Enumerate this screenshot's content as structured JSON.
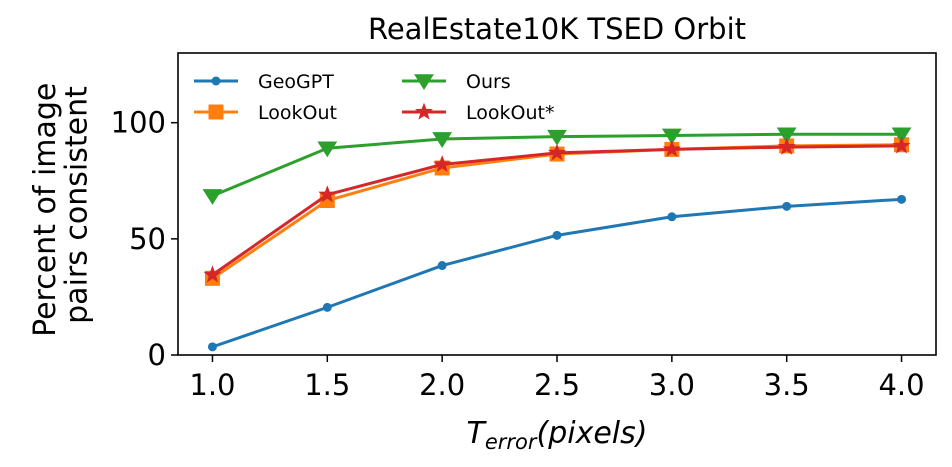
{
  "chart_data": {
    "type": "line",
    "title": "RealEstate10K TSED Orbit",
    "xlabel_main": "T",
    "xlabel_sub": "error",
    "xlabel_rest": "(pixels)",
    "ylabel_line1": "Percent of image",
    "ylabel_line2": "pairs consistent",
    "x": [
      1.0,
      1.5,
      2.0,
      2.5,
      3.0,
      3.5,
      4.0
    ],
    "x_tick_labels": [
      "1.0",
      "1.5",
      "2.0",
      "2.5",
      "3.0",
      "3.5",
      "4.0"
    ],
    "y_ticks": [
      0,
      50,
      100
    ],
    "y_tick_labels": [
      "0",
      "50",
      "100"
    ],
    "xlim": [
      0.85,
      4.15
    ],
    "ylim": [
      0,
      130
    ],
    "grid": false,
    "legend_placement": "top-left",
    "series": [
      {
        "name": "GeoGPT",
        "color": "#1f77b4",
        "marker": "circle",
        "values": [
          3.5,
          20.5,
          38.5,
          51.5,
          59.5,
          64.0,
          67.0
        ]
      },
      {
        "name": "LookOut",
        "color": "#ff7f0e",
        "marker": "square",
        "values": [
          33.0,
          66.5,
          80.5,
          86.5,
          88.5,
          90.0,
          90.5
        ]
      },
      {
        "name": "Ours",
        "color": "#2ca02c",
        "marker": "triangle-down",
        "values": [
          68.5,
          89.0,
          93.0,
          94.0,
          94.5,
          95.0,
          95.0
        ]
      },
      {
        "name": "LookOut*",
        "color": "#d62728",
        "marker": "star",
        "values": [
          34.5,
          69.0,
          82.0,
          87.0,
          88.5,
          89.5,
          90.0
        ]
      }
    ]
  }
}
